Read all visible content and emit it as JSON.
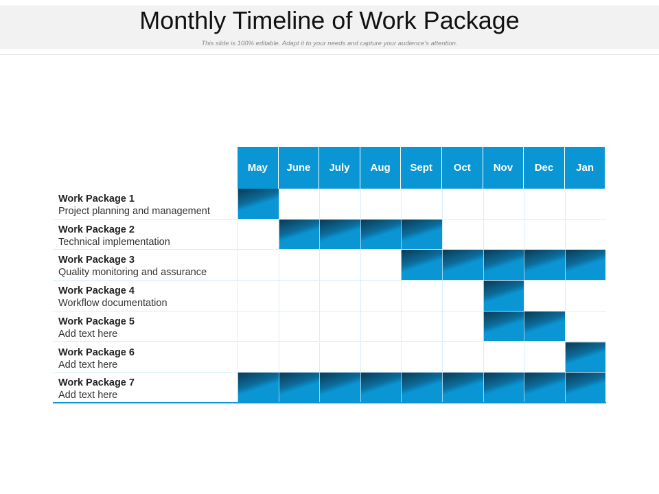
{
  "title": "Monthly Timeline of Work Package",
  "subtitle": "This slide is 100% editable. Adapt it to your needs and capture your audience's attention.",
  "colors": {
    "accent": "#0a96d4",
    "accent_dark": "#0b3a54",
    "grid": "#d8eef9"
  },
  "months": [
    "May",
    "June",
    "July",
    "Aug",
    "Sept",
    "Oct",
    "Nov",
    "Dec",
    "Jan"
  ],
  "packages": [
    {
      "name": "Work Package 1",
      "description": "Project planning and management",
      "months": [
        "May"
      ]
    },
    {
      "name": "Work Package 2",
      "description": "Technical implementation",
      "months": [
        "June",
        "July",
        "Aug",
        "Sept"
      ]
    },
    {
      "name": "Work Package 3",
      "description": "Quality monitoring and assurance",
      "months": [
        "Sept",
        "Oct",
        "Nov",
        "Dec",
        "Jan"
      ]
    },
    {
      "name": "Work Package 4",
      "description": "Workflow documentation",
      "months": [
        "Nov"
      ]
    },
    {
      "name": "Work Package 5",
      "description": "Add text here",
      "months": [
        "Nov",
        "Dec"
      ]
    },
    {
      "name": "Work Package 6",
      "description": "Add text here",
      "months": [
        "Jan"
      ]
    },
    {
      "name": "Work Package 7",
      "description": "Add text here",
      "months": [
        "May",
        "June",
        "July",
        "Aug",
        "Sept",
        "Oct",
        "Nov",
        "Dec",
        "Jan"
      ]
    }
  ]
}
